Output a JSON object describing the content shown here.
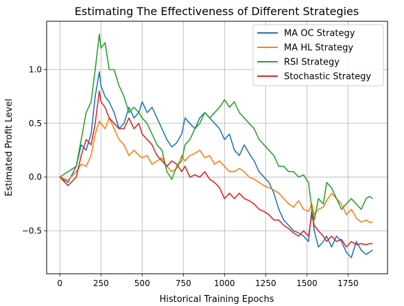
{
  "chart_data": {
    "type": "line",
    "title": "Estimating The Effectiveness of Different Strategies",
    "xlabel": "Historical Training Epochs",
    "ylabel": "Estimated Profit Level",
    "xlim": [
      -80,
      1990
    ],
    "ylim": [
      -0.9,
      1.45
    ],
    "xticks": [
      0,
      250,
      500,
      750,
      1000,
      1250,
      1500,
      1750
    ],
    "yticks": [
      -0.5,
      0.0,
      0.5,
      1.0
    ],
    "ytick_labels": [
      "−0.5",
      "0.0",
      "0.5",
      "1.0"
    ],
    "grid": true,
    "legend_position": "upper right",
    "series": [
      {
        "name": "MA OC Strategy",
        "color": "#1f77b4",
        "x": [
          0,
          50,
          100,
          130,
          160,
          190,
          215,
          240,
          250,
          275,
          300,
          330,
          360,
          390,
          420,
          450,
          480,
          500,
          530,
          560,
          590,
          620,
          650,
          680,
          710,
          740,
          760,
          790,
          820,
          850,
          880,
          910,
          940,
          970,
          1000,
          1030,
          1060,
          1090,
          1120,
          1150,
          1180,
          1210,
          1240,
          1270,
          1300,
          1330,
          1360,
          1390,
          1420,
          1450,
          1480,
          1510,
          1530,
          1545,
          1570,
          1600,
          1620,
          1650,
          1680,
          1710,
          1740,
          1770,
          1800,
          1830,
          1860,
          1880,
          1900
        ],
        "y": [
          0.0,
          -0.05,
          0.1,
          0.3,
          0.25,
          0.4,
          0.75,
          0.98,
          0.85,
          0.75,
          0.7,
          0.6,
          0.45,
          0.5,
          0.65,
          0.55,
          0.6,
          0.7,
          0.6,
          0.65,
          0.55,
          0.45,
          0.35,
          0.28,
          0.32,
          0.4,
          0.55,
          0.5,
          0.45,
          0.55,
          0.6,
          0.55,
          0.5,
          0.45,
          0.35,
          0.4,
          0.25,
          0.2,
          0.3,
          0.22,
          0.15,
          0.05,
          0.0,
          -0.05,
          -0.15,
          -0.3,
          -0.4,
          -0.45,
          -0.5,
          -0.52,
          -0.55,
          -0.6,
          -0.3,
          -0.5,
          -0.65,
          -0.6,
          -0.55,
          -0.65,
          -0.55,
          -0.6,
          -0.7,
          -0.75,
          -0.6,
          -0.68,
          -0.72,
          -0.7,
          -0.68
        ]
      },
      {
        "name": "MA HL Strategy",
        "color": "#ff7f0e",
        "x": [
          0,
          50,
          100,
          130,
          160,
          190,
          215,
          240,
          250,
          275,
          300,
          330,
          360,
          390,
          420,
          450,
          480,
          500,
          530,
          560,
          590,
          620,
          650,
          680,
          710,
          740,
          760,
          790,
          820,
          850,
          880,
          910,
          940,
          970,
          1000,
          1030,
          1060,
          1090,
          1120,
          1150,
          1180,
          1210,
          1240,
          1270,
          1300,
          1330,
          1360,
          1390,
          1420,
          1450,
          1480,
          1510,
          1530,
          1545,
          1570,
          1600,
          1620,
          1650,
          1680,
          1710,
          1740,
          1770,
          1800,
          1830,
          1860,
          1880,
          1900
        ],
        "y": [
          0.0,
          -0.03,
          0.05,
          0.12,
          0.1,
          0.2,
          0.4,
          0.52,
          0.5,
          0.45,
          0.55,
          0.45,
          0.35,
          0.3,
          0.2,
          0.25,
          0.2,
          0.18,
          0.2,
          0.12,
          0.15,
          0.18,
          0.1,
          0.05,
          0.08,
          0.2,
          0.15,
          0.2,
          0.22,
          0.25,
          0.18,
          0.2,
          0.12,
          0.15,
          0.1,
          0.05,
          0.05,
          0.08,
          0.05,
          0.0,
          -0.02,
          -0.05,
          -0.08,
          -0.1,
          -0.12,
          -0.15,
          -0.2,
          -0.25,
          -0.28,
          -0.22,
          -0.3,
          -0.32,
          -0.25,
          -0.35,
          -0.3,
          -0.28,
          -0.22,
          -0.15,
          -0.2,
          -0.25,
          -0.35,
          -0.3,
          -0.38,
          -0.42,
          -0.4,
          -0.42,
          -0.42
        ]
      },
      {
        "name": "RSI Strategy",
        "color": "#2ca02c",
        "x": [
          0,
          50,
          100,
          130,
          160,
          190,
          215,
          240,
          250,
          275,
          300,
          330,
          360,
          390,
          420,
          450,
          480,
          500,
          530,
          560,
          590,
          620,
          650,
          680,
          710,
          740,
          760,
          790,
          820,
          850,
          880,
          910,
          940,
          970,
          1000,
          1030,
          1060,
          1090,
          1120,
          1150,
          1180,
          1210,
          1240,
          1270,
          1300,
          1330,
          1360,
          1390,
          1420,
          1450,
          1480,
          1510,
          1530,
          1545,
          1570,
          1600,
          1620,
          1650,
          1680,
          1710,
          1740,
          1770,
          1800,
          1830,
          1860,
          1880,
          1900
        ],
        "y": [
          0.0,
          0.05,
          0.1,
          0.35,
          0.6,
          0.7,
          1.0,
          1.33,
          1.2,
          1.25,
          1.0,
          1.0,
          0.85,
          0.75,
          0.6,
          0.65,
          0.6,
          0.55,
          0.5,
          0.4,
          0.3,
          0.25,
          0.05,
          -0.02,
          0.1,
          0.15,
          0.3,
          0.35,
          0.45,
          0.5,
          0.6,
          0.55,
          0.6,
          0.65,
          0.72,
          0.65,
          0.7,
          0.6,
          0.55,
          0.5,
          0.45,
          0.35,
          0.3,
          0.25,
          0.2,
          0.1,
          0.1,
          0.05,
          0.05,
          0.0,
          0.02,
          -0.05,
          -0.3,
          -0.4,
          -0.2,
          -0.25,
          -0.05,
          -0.1,
          -0.2,
          -0.3,
          -0.25,
          -0.2,
          -0.25,
          -0.3,
          -0.2,
          -0.18,
          -0.2
        ]
      },
      {
        "name": "Stochastic Strategy",
        "color": "#d62728",
        "x": [
          0,
          50,
          100,
          130,
          160,
          190,
          215,
          240,
          250,
          275,
          300,
          330,
          360,
          390,
          420,
          450,
          480,
          500,
          530,
          560,
          590,
          620,
          650,
          680,
          710,
          740,
          760,
          790,
          820,
          850,
          880,
          910,
          940,
          970,
          1000,
          1030,
          1060,
          1090,
          1120,
          1150,
          1180,
          1210,
          1240,
          1270,
          1300,
          1330,
          1360,
          1390,
          1420,
          1450,
          1480,
          1510,
          1530,
          1545,
          1570,
          1600,
          1620,
          1650,
          1680,
          1710,
          1740,
          1770,
          1800,
          1830,
          1860,
          1880,
          1900
        ],
        "y": [
          0.0,
          -0.08,
          0.0,
          0.2,
          0.35,
          0.3,
          0.5,
          0.8,
          0.7,
          0.65,
          0.55,
          0.5,
          0.45,
          0.45,
          0.55,
          0.45,
          0.5,
          0.4,
          0.35,
          0.3,
          0.2,
          0.15,
          0.1,
          0.15,
          0.12,
          0.05,
          0.1,
          0.0,
          0.02,
          0.0,
          0.05,
          -0.02,
          -0.05,
          -0.1,
          -0.2,
          -0.15,
          -0.2,
          -0.15,
          -0.2,
          -0.22,
          -0.25,
          -0.3,
          -0.32,
          -0.35,
          -0.4,
          -0.4,
          -0.45,
          -0.48,
          -0.52,
          -0.55,
          -0.5,
          -0.55,
          -0.35,
          -0.45,
          -0.5,
          -0.55,
          -0.6,
          -0.55,
          -0.6,
          -0.58,
          -0.65,
          -0.6,
          -0.63,
          -0.62,
          -0.63,
          -0.62,
          -0.62
        ]
      }
    ]
  }
}
